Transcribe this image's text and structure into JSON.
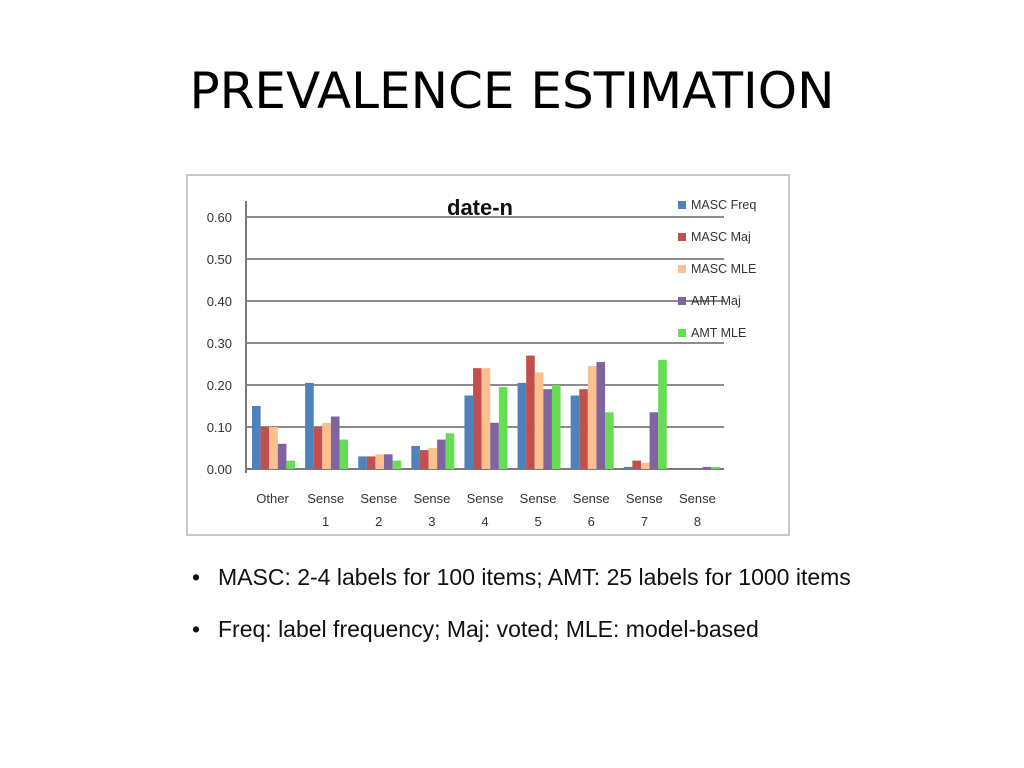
{
  "slide": {
    "title": "PREVALENCE ESTIMATION",
    "bullet_glyph": "•",
    "bullets": [
      "MASC: 2-4 labels for 100 items; AMT: 25 labels for 1000 items",
      "Freq: label frequency;  Maj: voted;  MLE: model-based"
    ]
  },
  "chart_data": {
    "type": "bar",
    "title": "date-n",
    "xlabel": "",
    "ylabel": "",
    "ylim": [
      0,
      0.6
    ],
    "yticks": [
      "0.00",
      "0.10",
      "0.20",
      "0.30",
      "0.40",
      "0.50",
      "0.60"
    ],
    "grid": true,
    "legend_position": "right",
    "categories": [
      [
        "Other"
      ],
      [
        "Sense",
        "1"
      ],
      [
        "Sense",
        "2"
      ],
      [
        "Sense",
        "3"
      ],
      [
        "Sense",
        "4"
      ],
      [
        "Sense",
        "5"
      ],
      [
        "Sense",
        "6"
      ],
      [
        "Sense",
        "7"
      ],
      [
        "Sense",
        "8"
      ]
    ],
    "series": [
      {
        "name": "MASC Freq",
        "color": "#4f81bd",
        "values": [
          0.15,
          0.205,
          0.03,
          0.055,
          0.175,
          0.205,
          0.175,
          0.005,
          0.0
        ]
      },
      {
        "name": "MASC Maj",
        "color": "#c0504d",
        "values": [
          0.1,
          0.1,
          0.03,
          0.045,
          0.24,
          0.27,
          0.19,
          0.02,
          0.0
        ]
      },
      {
        "name": "MASC MLE",
        "color": "#fac090",
        "values": [
          0.1,
          0.11,
          0.035,
          0.05,
          0.24,
          0.23,
          0.245,
          0.015,
          0.0
        ]
      },
      {
        "name": "AMT Maj",
        "color": "#8064a2",
        "values": [
          0.06,
          0.125,
          0.035,
          0.07,
          0.11,
          0.19,
          0.255,
          0.135,
          0.005
        ]
      },
      {
        "name": "AMT MLE",
        "color": "#66dd55",
        "values": [
          0.02,
          0.07,
          0.02,
          0.085,
          0.195,
          0.2,
          0.135,
          0.26,
          0.005
        ]
      }
    ]
  }
}
